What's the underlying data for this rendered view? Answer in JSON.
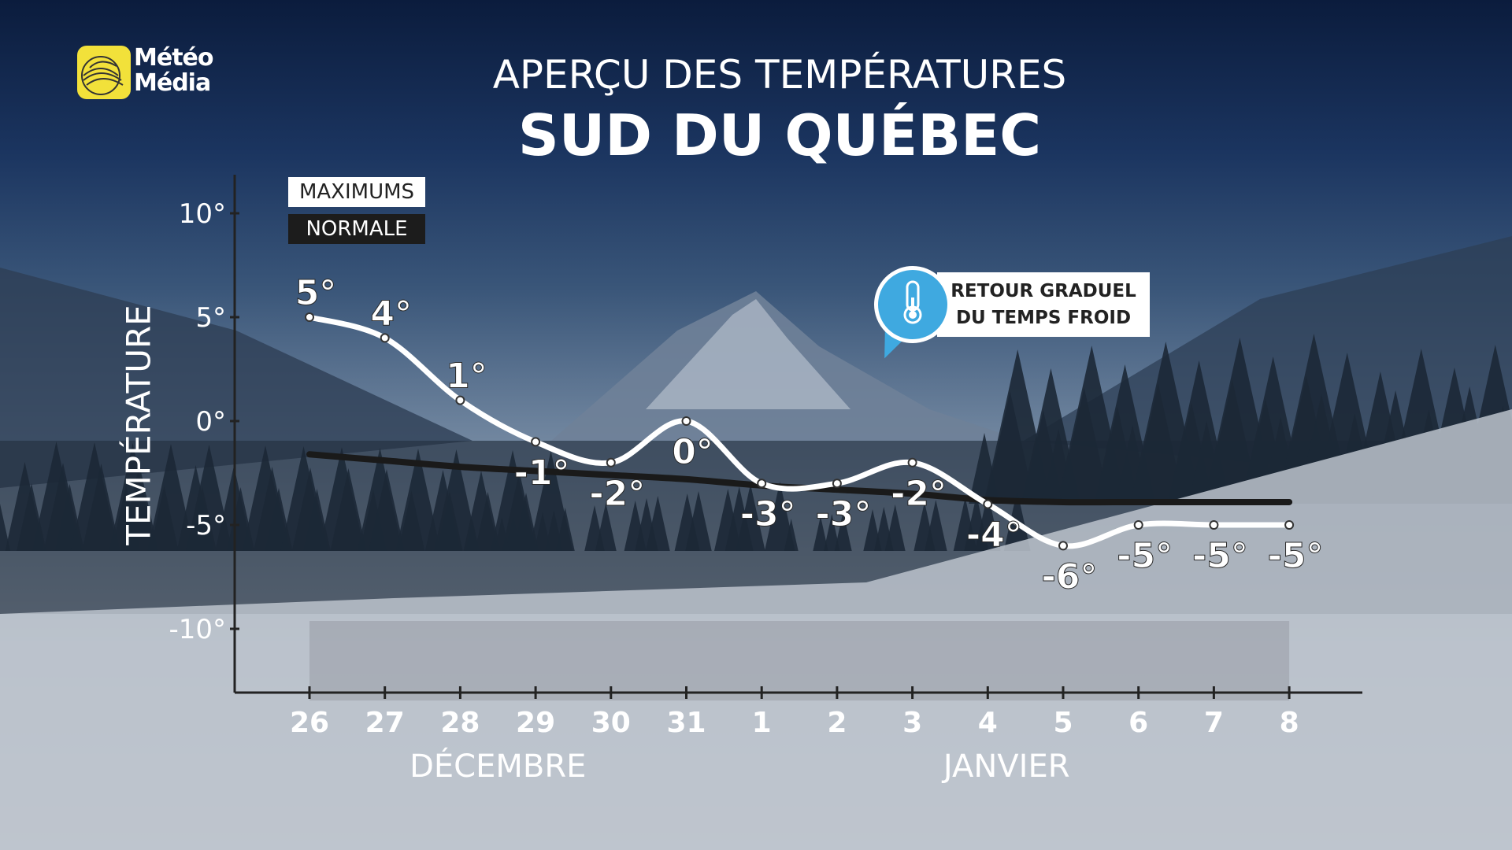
{
  "brand": {
    "name_line1": "Météo",
    "name_line2": "Média",
    "logo_color": "#f2e13a"
  },
  "header": {
    "title": "APERÇU DES TEMPÉRATURES",
    "subtitle": "SUD DU QUÉBEC"
  },
  "legend": {
    "max_label": "MAXIMUMS",
    "normal_label": "NORMALE"
  },
  "callout": {
    "line1": "RETOUR GRADUEL",
    "line2": "DU TEMPS FROID",
    "icon": "thermometer-icon",
    "color": "#3fa9e0"
  },
  "chart_data": {
    "type": "line",
    "ylabel": "TEMPÉRATURE",
    "ylim": [
      -12,
      12
    ],
    "yticks": [
      10,
      5,
      0,
      -5,
      -10
    ],
    "ytick_labels": [
      "10°",
      "5°",
      "0°",
      "-5°",
      "-10°"
    ],
    "categories": [
      "26",
      "27",
      "28",
      "29",
      "30",
      "31",
      "1",
      "2",
      "3",
      "4",
      "5",
      "6",
      "7",
      "8"
    ],
    "month_labels": [
      {
        "label": "DÉCEMBRE",
        "center_index": 2.5
      },
      {
        "label": "JANVIER",
        "center_index": 9.25
      }
    ],
    "series": [
      {
        "name": "MAXIMUMS",
        "values": [
          5,
          4,
          1,
          -1,
          -2,
          0,
          -3,
          -3,
          -2,
          -4,
          -6,
          -5,
          -5,
          -5
        ],
        "color": "#ffffff"
      },
      {
        "name": "NORMALE",
        "values": [
          -1.6,
          -1.9,
          -2.2,
          -2.4,
          -2.6,
          -2.8,
          -3.1,
          -3.3,
          -3.5,
          -3.8,
          -3.9,
          -3.9,
          -3.9,
          -3.9
        ],
        "color": "#1a1a1a"
      }
    ],
    "data_labels": [
      "5°",
      "4°",
      "1°",
      "-1°",
      "-2°",
      "0°",
      "-3°",
      "-3°",
      "-2°",
      "-4°",
      "-6°",
      "-5°",
      "-5°",
      "-5°"
    ],
    "label_position": [
      "above",
      "above",
      "above",
      "below",
      "below",
      "below",
      "below",
      "below",
      "below",
      "below",
      "below",
      "below",
      "below",
      "below"
    ],
    "grid": false
  }
}
